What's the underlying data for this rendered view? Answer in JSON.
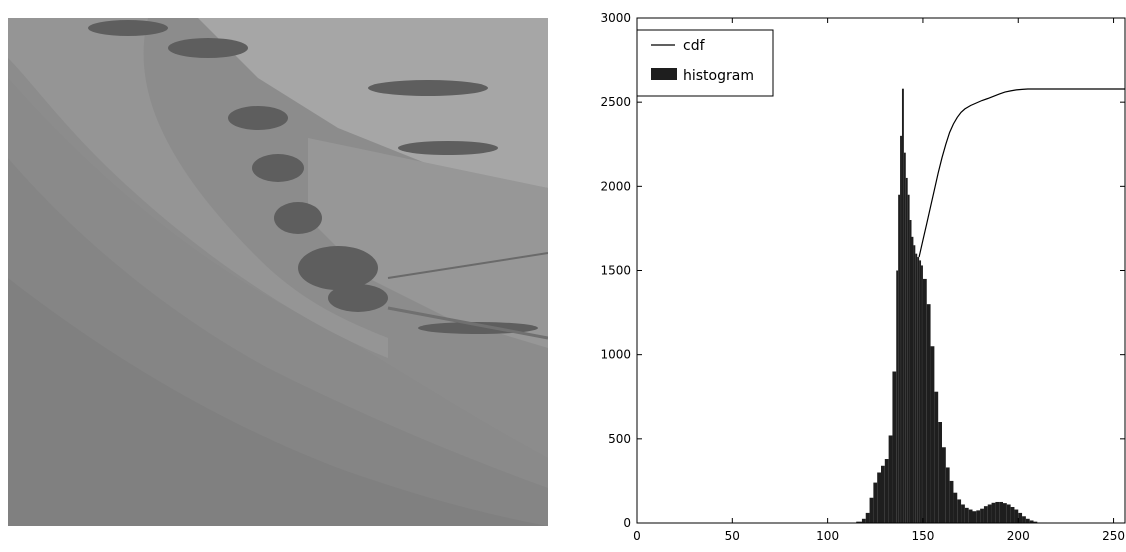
{
  "photo": {
    "icon": "grayscale-hillside-landscape-photo"
  },
  "chart_data": {
    "type": "bar",
    "title": "",
    "xlabel": "",
    "ylabel": "",
    "xlim": [
      0,
      256
    ],
    "ylim": [
      0,
      3000
    ],
    "xticks": [
      0,
      50,
      100,
      150,
      200,
      250
    ],
    "yticks": [
      0,
      500,
      1000,
      1500,
      2000,
      2500,
      3000
    ],
    "grid": false,
    "legend": {
      "placement": "top-left",
      "entries": [
        "cdf",
        "histogram"
      ]
    },
    "series": [
      {
        "name": "histogram",
        "type": "bar",
        "color": "#1e1e1e",
        "x": [
          110,
          115,
          118,
          120,
          122,
          124,
          126,
          128,
          130,
          132,
          134,
          136,
          137,
          138,
          139,
          140,
          141,
          142,
          143,
          144,
          145,
          146,
          147,
          148,
          149,
          150,
          152,
          154,
          156,
          158,
          160,
          162,
          164,
          166,
          168,
          170,
          172,
          174,
          176,
          178,
          180,
          182,
          184,
          186,
          188,
          190,
          192,
          194,
          196,
          198,
          200,
          202,
          204,
          206,
          208,
          210,
          215
        ],
        "values": [
          0,
          8,
          25,
          60,
          150,
          240,
          300,
          340,
          380,
          520,
          900,
          1500,
          1950,
          2300,
          2580,
          2200,
          2050,
          1950,
          1800,
          1700,
          1650,
          1600,
          1580,
          1560,
          1530,
          1450,
          1300,
          1050,
          780,
          600,
          450,
          330,
          250,
          180,
          140,
          110,
          90,
          80,
          70,
          75,
          85,
          100,
          110,
          120,
          125,
          125,
          118,
          110,
          95,
          80,
          60,
          40,
          25,
          15,
          8,
          3,
          0
        ]
      },
      {
        "name": "cdf",
        "type": "line",
        "color": "#000000",
        "x": [
          148,
          150,
          152,
          154,
          156,
          158,
          160,
          162,
          164,
          166,
          168,
          170,
          172,
          175,
          178,
          181,
          184,
          187,
          190,
          193,
          196,
          199,
          202,
          205,
          210,
          220,
          230,
          240,
          256
        ],
        "values": [
          1580,
          1680,
          1780,
          1880,
          1980,
          2080,
          2170,
          2250,
          2320,
          2370,
          2410,
          2440,
          2460,
          2480,
          2495,
          2510,
          2522,
          2535,
          2548,
          2560,
          2567,
          2573,
          2576,
          2578,
          2578,
          2578,
          2578,
          2578,
          2578
        ]
      }
    ]
  }
}
